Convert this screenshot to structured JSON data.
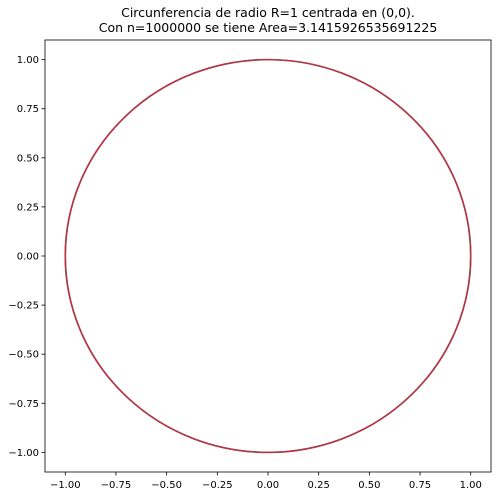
{
  "chart_data": {
    "type": "line",
    "title_lines": [
      "Circunferencia de radio R=1 centrada en (0,0).",
      "Con n=1000000 se tiene Area=3.1415926535691225"
    ],
    "xlabel": "",
    "ylabel": "",
    "xlim": [
      -1.1,
      1.1
    ],
    "ylim": [
      -1.1,
      1.1
    ],
    "grid": false,
    "legend": false,
    "x_ticks": [
      -1.0,
      -0.75,
      -0.5,
      -0.25,
      0.0,
      0.25,
      0.5,
      0.75,
      1.0
    ],
    "x_tick_labels": [
      "−1.00",
      "−0.75",
      "−0.50",
      "−0.25",
      "0.00",
      "0.25",
      "0.50",
      "0.75",
      "1.00"
    ],
    "y_ticks": [
      1.0,
      0.75,
      0.5,
      0.25,
      0.0,
      -0.25,
      -0.5,
      -0.75,
      -1.0
    ],
    "y_tick_labels": [
      "1.00",
      "0.75",
      "0.50",
      "0.25",
      "0.00",
      "−0.25",
      "−0.50",
      "−0.75",
      "−1.00"
    ],
    "series": [
      {
        "color": "#1f77b4",
        "shape": "circle",
        "center": [
          0,
          0
        ],
        "radius": 1
      },
      {
        "color": "#d62728",
        "shape": "circle",
        "center": [
          0,
          0
        ],
        "radius": 1
      }
    ]
  }
}
